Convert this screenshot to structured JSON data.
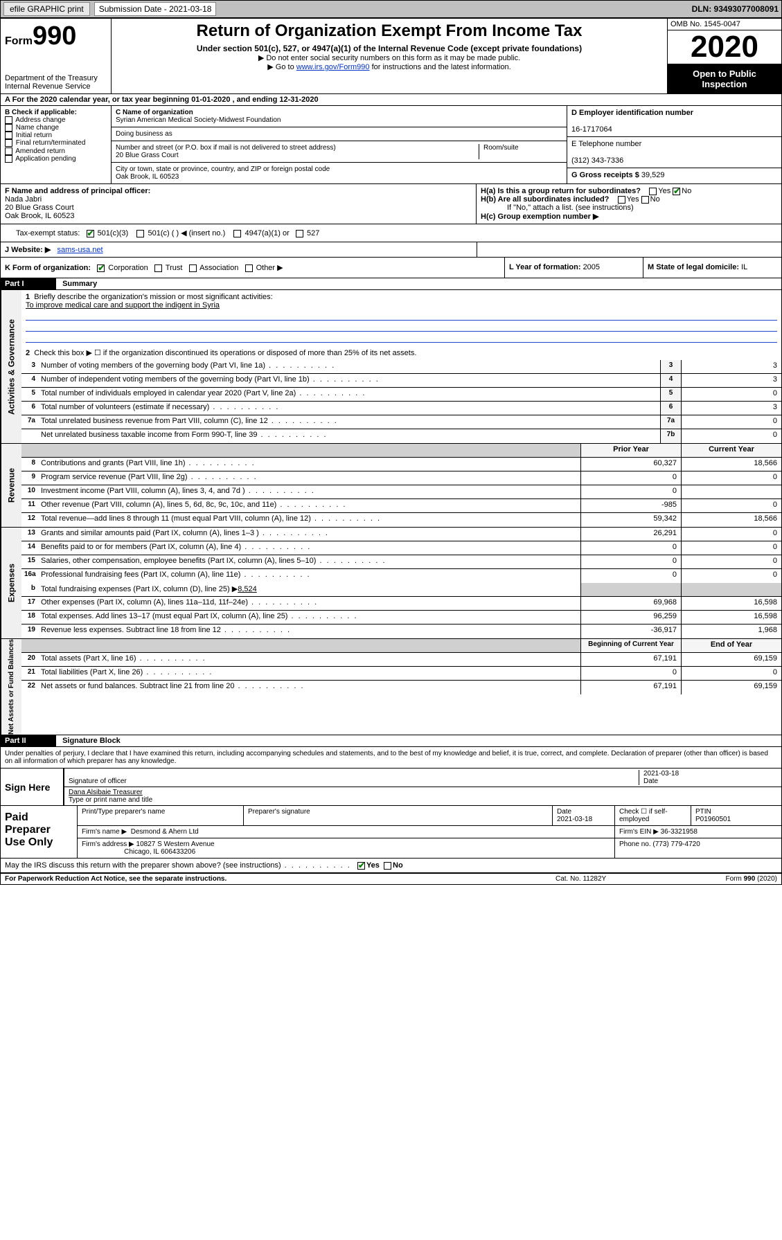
{
  "topbar": {
    "efile": "efile GRAPHIC print",
    "submission_label": "Submission Date - 2021-03-18",
    "dln": "DLN: 93493077008091"
  },
  "header": {
    "form_label": "Form",
    "form_no": "990",
    "dept": "Department of the Treasury\nInternal Revenue Service",
    "title": "Return of Organization Exempt From Income Tax",
    "sub1": "Under section 501(c), 527, or 4947(a)(1) of the Internal Revenue Code (except private foundations)",
    "sub2": "▶ Do not enter social security numbers on this form as it may be made public.",
    "sub3_pre": "▶ Go to ",
    "sub3_link": "www.irs.gov/Form990",
    "sub3_post": " for instructions and the latest information.",
    "omb": "OMB No. 1545-0047",
    "year": "2020",
    "open": "Open to Public Inspection"
  },
  "rowA": "A For the 2020 calendar year, or tax year beginning 01-01-2020   , and ending 12-31-2020",
  "boxB": {
    "label": "B Check if applicable:",
    "items": [
      "Address change",
      "Name change",
      "Initial return",
      "Final return/terminated",
      "Amended return",
      "Application pending"
    ]
  },
  "boxC": {
    "name_lbl": "C Name of organization",
    "name": "Syrian American Medical Society-Midwest Foundation",
    "dba_lbl": "Doing business as",
    "addr_lbl": "Number and street (or P.O. box if mail is not delivered to street address)",
    "room_lbl": "Room/suite",
    "addr": "20 Blue Grass Court",
    "city_lbl": "City or town, state or province, country, and ZIP or foreign postal code",
    "city": "Oak Brook, IL  60523"
  },
  "boxD": {
    "lbl": "D Employer identification number",
    "val": "16-1717064"
  },
  "boxE": {
    "lbl": "E Telephone number",
    "val": "(312) 343-7336"
  },
  "boxG": {
    "lbl": "G Gross receipts $ ",
    "val": "39,529"
  },
  "boxF": {
    "lbl": "F  Name and address of principal officer:",
    "name": "Nada Jabri",
    "addr1": "20 Blue Grass Court",
    "addr2": "Oak Brook, IL  60523"
  },
  "boxH": {
    "a": "H(a)  Is this a group return for subordinates?",
    "b": "H(b)  Are all subordinates included?",
    "note": "If \"No,\" attach a list. (see instructions)",
    "c": "H(c)  Group exemption number ▶"
  },
  "taxI": {
    "lbl": "Tax-exempt status:",
    "o1": "501(c)(3)",
    "o2": "501(c) (  ) ◀ (insert no.)",
    "o3": "4947(a)(1) or",
    "o4": "527"
  },
  "rowJ": {
    "lbl": "J Website: ▶",
    "val": "sams-usa.net"
  },
  "rowK": {
    "lbl": "K Form of organization:",
    "opts": [
      "Corporation",
      "Trust",
      "Association",
      "Other ▶"
    ],
    "l_lbl": "L Year of formation: ",
    "l_val": "2005",
    "m_lbl": "M State of legal domicile: ",
    "m_val": "IL"
  },
  "part1": {
    "hdr": "Part I",
    "title": "Summary"
  },
  "summary": {
    "q1": "Briefly describe the organization's mission or most significant activities:",
    "mission": "To improve medical care and support the indigent in Syria",
    "q2": "Check this box ▶ ☐  if the organization discontinued its operations or disposed of more than 25% of its net assets.",
    "lines_single": [
      {
        "n": "3",
        "t": "Number of voting members of the governing body (Part VI, line 1a)",
        "bx": "3",
        "v": "3"
      },
      {
        "n": "4",
        "t": "Number of independent voting members of the governing body (Part VI, line 1b)",
        "bx": "4",
        "v": "3"
      },
      {
        "n": "5",
        "t": "Total number of individuals employed in calendar year 2020 (Part V, line 2a)",
        "bx": "5",
        "v": "0"
      },
      {
        "n": "6",
        "t": "Total number of volunteers (estimate if necessary)",
        "bx": "6",
        "v": "3"
      },
      {
        "n": "7a",
        "t": "Total unrelated business revenue from Part VIII, column (C), line 12",
        "bx": "7a",
        "v": "0"
      },
      {
        "n": "",
        "t": "Net unrelated business taxable income from Form 990-T, line 39",
        "bx": "7b",
        "v": "0"
      }
    ]
  },
  "revenue": {
    "hdr_prior": "Prior Year",
    "hdr_curr": "Current Year",
    "rows": [
      {
        "n": "8",
        "t": "Contributions and grants (Part VIII, line 1h)",
        "p": "60,327",
        "c": "18,566"
      },
      {
        "n": "9",
        "t": "Program service revenue (Part VIII, line 2g)",
        "p": "0",
        "c": "0"
      },
      {
        "n": "10",
        "t": "Investment income (Part VIII, column (A), lines 3, 4, and 7d )",
        "p": "0",
        "c": ""
      },
      {
        "n": "11",
        "t": "Other revenue (Part VIII, column (A), lines 5, 6d, 8c, 9c, 10c, and 11e)",
        "p": "-985",
        "c": "0"
      },
      {
        "n": "12",
        "t": "Total revenue—add lines 8 through 11 (must equal Part VIII, column (A), line 12)",
        "p": "59,342",
        "c": "18,566"
      }
    ]
  },
  "expenses": {
    "rows": [
      {
        "n": "13",
        "t": "Grants and similar amounts paid (Part IX, column (A), lines 1–3 )",
        "p": "26,291",
        "c": "0"
      },
      {
        "n": "14",
        "t": "Benefits paid to or for members (Part IX, column (A), line 4)",
        "p": "0",
        "c": "0"
      },
      {
        "n": "15",
        "t": "Salaries, other compensation, employee benefits (Part IX, column (A), lines 5–10)",
        "p": "0",
        "c": "0"
      },
      {
        "n": "16a",
        "t": "Professional fundraising fees (Part IX, column (A), line 11e)",
        "p": "0",
        "c": "0"
      }
    ],
    "row_b": {
      "n": "b",
      "t": "Total fundraising expenses (Part IX, column (D), line 25) ▶",
      "val": "8,524"
    },
    "rows2": [
      {
        "n": "17",
        "t": "Other expenses (Part IX, column (A), lines 11a–11d, 11f–24e)",
        "p": "69,968",
        "c": "16,598"
      },
      {
        "n": "18",
        "t": "Total expenses. Add lines 13–17 (must equal Part IX, column (A), line 25)",
        "p": "96,259",
        "c": "16,598"
      },
      {
        "n": "19",
        "t": "Revenue less expenses. Subtract line 18 from line 12",
        "p": "-36,917",
        "c": "1,968"
      }
    ]
  },
  "netassets": {
    "hdr_beg": "Beginning of Current Year",
    "hdr_end": "End of Year",
    "rows": [
      {
        "n": "20",
        "t": "Total assets (Part X, line 16)",
        "p": "67,191",
        "c": "69,159"
      },
      {
        "n": "21",
        "t": "Total liabilities (Part X, line 26)",
        "p": "0",
        "c": "0"
      },
      {
        "n": "22",
        "t": "Net assets or fund balances. Subtract line 21 from line 20",
        "p": "67,191",
        "c": "69,159"
      }
    ]
  },
  "part2": {
    "hdr": "Part II",
    "title": "Signature Block"
  },
  "sig": {
    "penalty": "Under penalties of perjury, I declare that I have examined this return, including accompanying schedules and statements, and to the best of my knowledge and belief, it is true, correct, and complete. Declaration of preparer (other than officer) is based on all information of which preparer has any knowledge.",
    "sign_here": "Sign Here",
    "sig_officer": "Signature of officer",
    "date": "2021-03-18",
    "date_lbl": "Date",
    "name": "Dana Alsibaie  Treasurer",
    "name_lbl": "Type or print name and title"
  },
  "paid": {
    "lbl": "Paid Preparer Use Only",
    "h1": "Print/Type preparer's name",
    "h2": "Preparer's signature",
    "h3": "Date",
    "h3v": "2021-03-18",
    "h4": "Check ☐ if self-employed",
    "h5": "PTIN",
    "h5v": "P01960501",
    "firm_name_lbl": "Firm's name    ▶",
    "firm_name": "Desmond & Ahern Ltd",
    "firm_ein_lbl": "Firm's EIN ▶",
    "firm_ein": "36-3321958",
    "firm_addr_lbl": "Firm's address ▶",
    "firm_addr1": "10827 S Western Avenue",
    "firm_addr2": "Chicago, IL  606433206",
    "phone_lbl": "Phone no. ",
    "phone": "(773) 779-4720"
  },
  "discuss": "May the IRS discuss this return with the preparer shown above? (see instructions)",
  "footer": {
    "l": "For Paperwork Reduction Act Notice, see the separate instructions.",
    "c": "Cat. No. 11282Y",
    "r": "Form 990 (2020)"
  },
  "side_labels": {
    "gov": "Activities & Governance",
    "rev": "Revenue",
    "exp": "Expenses",
    "net": "Net Assets or Fund Balances"
  },
  "yn": {
    "yes": "Yes",
    "no": "No"
  }
}
